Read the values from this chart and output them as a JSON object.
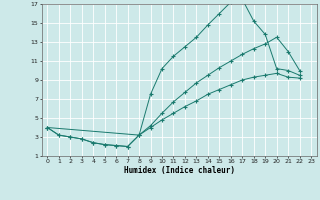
{
  "xlabel": "Humidex (Indice chaleur)",
  "bg_color": "#cde9e9",
  "grid_color": "#ffffff",
  "line_color": "#1a7a6e",
  "xlim": [
    -0.5,
    23.5
  ],
  "ylim": [
    1,
    17
  ],
  "xticks": [
    0,
    1,
    2,
    3,
    4,
    5,
    6,
    7,
    8,
    9,
    10,
    11,
    12,
    13,
    14,
    15,
    16,
    17,
    18,
    19,
    20,
    21,
    22,
    23
  ],
  "yticks": [
    1,
    3,
    5,
    7,
    9,
    11,
    13,
    15,
    17
  ],
  "curve1_x": [
    0,
    1,
    2,
    3,
    4,
    5,
    6,
    7,
    8,
    9,
    10,
    11,
    12,
    13,
    14,
    15,
    16,
    17,
    18,
    19,
    20,
    21,
    22
  ],
  "curve1_y": [
    4,
    3.2,
    3.0,
    2.8,
    2.4,
    2.2,
    2.1,
    2.0,
    3.2,
    7.5,
    10.2,
    11.5,
    12.5,
    13.5,
    14.8,
    16.0,
    17.2,
    17.5,
    15.2,
    13.8,
    10.2,
    10.0,
    9.5
  ],
  "curve2_x": [
    0,
    8,
    9,
    10,
    11,
    12,
    13,
    14,
    15,
    16,
    17,
    18,
    19,
    20,
    21,
    22
  ],
  "curve2_y": [
    4,
    3.2,
    4.2,
    5.5,
    6.7,
    7.7,
    8.7,
    9.5,
    10.3,
    11.0,
    11.7,
    12.3,
    12.8,
    13.5,
    12.0,
    10.0
  ],
  "curve3_x": [
    0,
    1,
    2,
    3,
    4,
    5,
    6,
    7,
    8,
    9,
    10,
    11,
    12,
    13,
    14,
    15,
    16,
    17,
    18,
    19,
    20,
    21,
    22
  ],
  "curve3_y": [
    4,
    3.2,
    3.0,
    2.8,
    2.4,
    2.2,
    2.1,
    2.0,
    3.2,
    4.0,
    4.8,
    5.5,
    6.2,
    6.8,
    7.5,
    8.0,
    8.5,
    9.0,
    9.3,
    9.5,
    9.7,
    9.3,
    9.2
  ]
}
